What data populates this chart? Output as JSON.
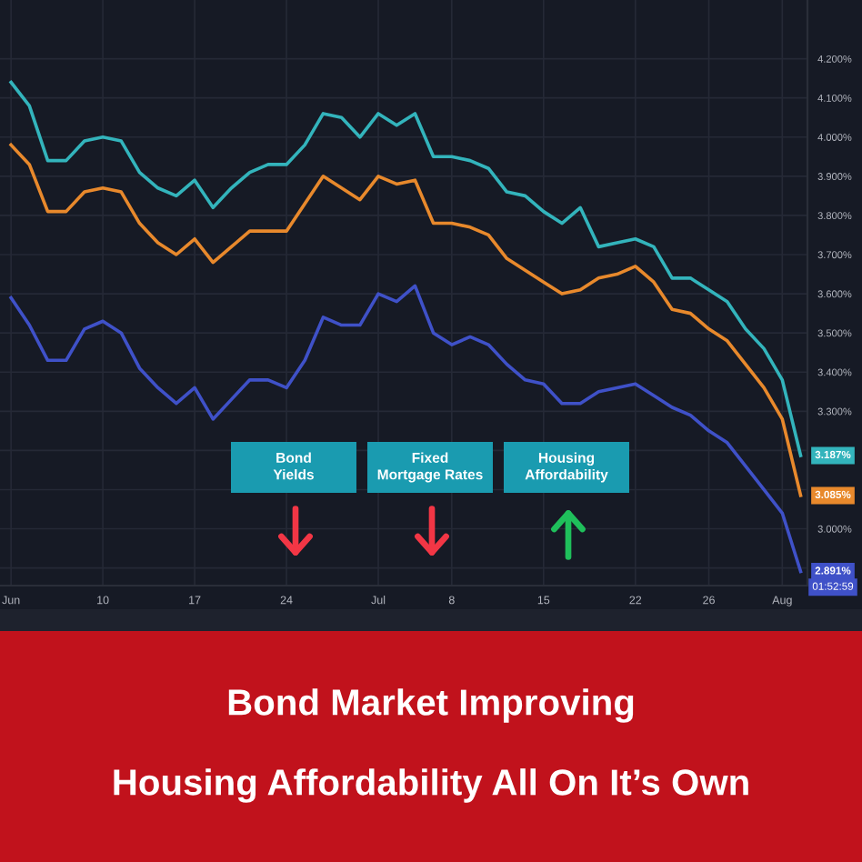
{
  "chart_data": {
    "type": "line",
    "title": "Bond Market Improving\nHousing Affordability All On It’s Own",
    "categories": [
      "Jun",
      null,
      null,
      null,
      null,
      "10",
      null,
      null,
      null,
      null,
      "17",
      null,
      null,
      null,
      null,
      "24",
      null,
      null,
      null,
      null,
      "Jul",
      null,
      null,
      null,
      "8",
      null,
      null,
      null,
      null,
      "15",
      null,
      null,
      null,
      null,
      "22",
      null,
      null,
      null,
      "26",
      null,
      null,
      null,
      "Aug",
      null
    ],
    "series": [
      {
        "color": "#33b4bc",
        "values": [
          4.14,
          4.08,
          3.94,
          3.94,
          3.99,
          4.0,
          3.99,
          3.91,
          3.87,
          3.85,
          3.89,
          3.82,
          3.87,
          3.91,
          3.93,
          3.93,
          3.98,
          4.06,
          4.05,
          4.0,
          4.06,
          4.03,
          4.06,
          3.95,
          3.95,
          3.94,
          3.92,
          3.86,
          3.85,
          3.81,
          3.78,
          3.82,
          3.72,
          3.73,
          3.74,
          3.72,
          3.64,
          3.64,
          3.61,
          3.58,
          3.51,
          3.46,
          3.38,
          3.187
        ],
        "value_labels": [
          null,
          null,
          null,
          null,
          null,
          null,
          null,
          null,
          null,
          null,
          null,
          null,
          null,
          null,
          null,
          null,
          null,
          null,
          null,
          null,
          null,
          null,
          null,
          null,
          null,
          null,
          null,
          null,
          null,
          null,
          null,
          null,
          null,
          null,
          null,
          null,
          null,
          null,
          null,
          null,
          null,
          null,
          null,
          "3.187%"
        ]
      },
      {
        "color": "#e8892c",
        "values": [
          3.98,
          3.93,
          3.81,
          3.81,
          3.86,
          3.87,
          3.86,
          3.78,
          3.73,
          3.7,
          3.74,
          3.68,
          3.72,
          3.76,
          3.76,
          3.76,
          3.83,
          3.9,
          3.87,
          3.84,
          3.9,
          3.88,
          3.89,
          3.78,
          3.78,
          3.77,
          3.75,
          3.69,
          3.66,
          3.63,
          3.6,
          3.61,
          3.64,
          3.65,
          3.67,
          3.63,
          3.56,
          3.55,
          3.51,
          3.48,
          3.42,
          3.36,
          3.28,
          3.085
        ],
        "value_labels": [
          null,
          null,
          null,
          null,
          null,
          null,
          null,
          null,
          null,
          null,
          null,
          null,
          null,
          null,
          null,
          null,
          null,
          null,
          null,
          null,
          null,
          null,
          null,
          null,
          null,
          null,
          null,
          null,
          null,
          null,
          null,
          null,
          null,
          null,
          null,
          null,
          null,
          null,
          null,
          null,
          null,
          null,
          null,
          "3.085%"
        ]
      },
      {
        "color": "#3f51c8",
        "values": [
          3.59,
          3.52,
          3.43,
          3.43,
          3.51,
          3.53,
          3.5,
          3.41,
          3.36,
          3.32,
          3.36,
          3.28,
          3.33,
          3.38,
          3.38,
          3.36,
          3.43,
          3.54,
          3.52,
          3.52,
          3.6,
          3.58,
          3.62,
          3.5,
          3.47,
          3.49,
          3.47,
          3.42,
          3.38,
          3.37,
          3.32,
          3.32,
          3.35,
          3.36,
          3.37,
          3.34,
          3.31,
          3.29,
          3.25,
          3.22,
          3.16,
          3.1,
          3.04,
          2.891
        ],
        "value_labels": [
          null,
          null,
          null,
          null,
          null,
          null,
          null,
          null,
          null,
          null,
          null,
          null,
          null,
          null,
          null,
          null,
          null,
          null,
          null,
          null,
          null,
          null,
          null,
          null,
          null,
          null,
          null,
          null,
          null,
          null,
          null,
          null,
          null,
          null,
          null,
          null,
          null,
          null,
          null,
          null,
          null,
          null,
          null,
          "2.891%"
        ]
      }
    ],
    "ylim": [
      2.855,
      4.35
    ],
    "yticks": [
      {
        "value": 2.9,
        "label": null
      },
      {
        "value": 3.0,
        "label": "3.000%"
      },
      {
        "value": 3.1,
        "label": null
      },
      {
        "value": 3.2,
        "label": null
      },
      {
        "value": 3.3,
        "label": "3.300%"
      },
      {
        "value": 3.4,
        "label": "3.400%"
      },
      {
        "value": 3.5,
        "label": "3.500%"
      },
      {
        "value": 3.6,
        "label": "3.600%"
      },
      {
        "value": 3.7,
        "label": "3.700%"
      },
      {
        "value": 3.8,
        "label": "3.800%"
      },
      {
        "value": 3.9,
        "label": "3.900%"
      },
      {
        "value": 4.0,
        "label": "4.000%"
      },
      {
        "value": 4.1,
        "label": "4.100%"
      },
      {
        "value": 4.2,
        "label": "4.200%"
      }
    ],
    "grid": true,
    "annotations": [
      "Bond Yields",
      "Fixed Mortgage Rates",
      "Housing Affordability",
      "01:52:59"
    ]
  }
}
